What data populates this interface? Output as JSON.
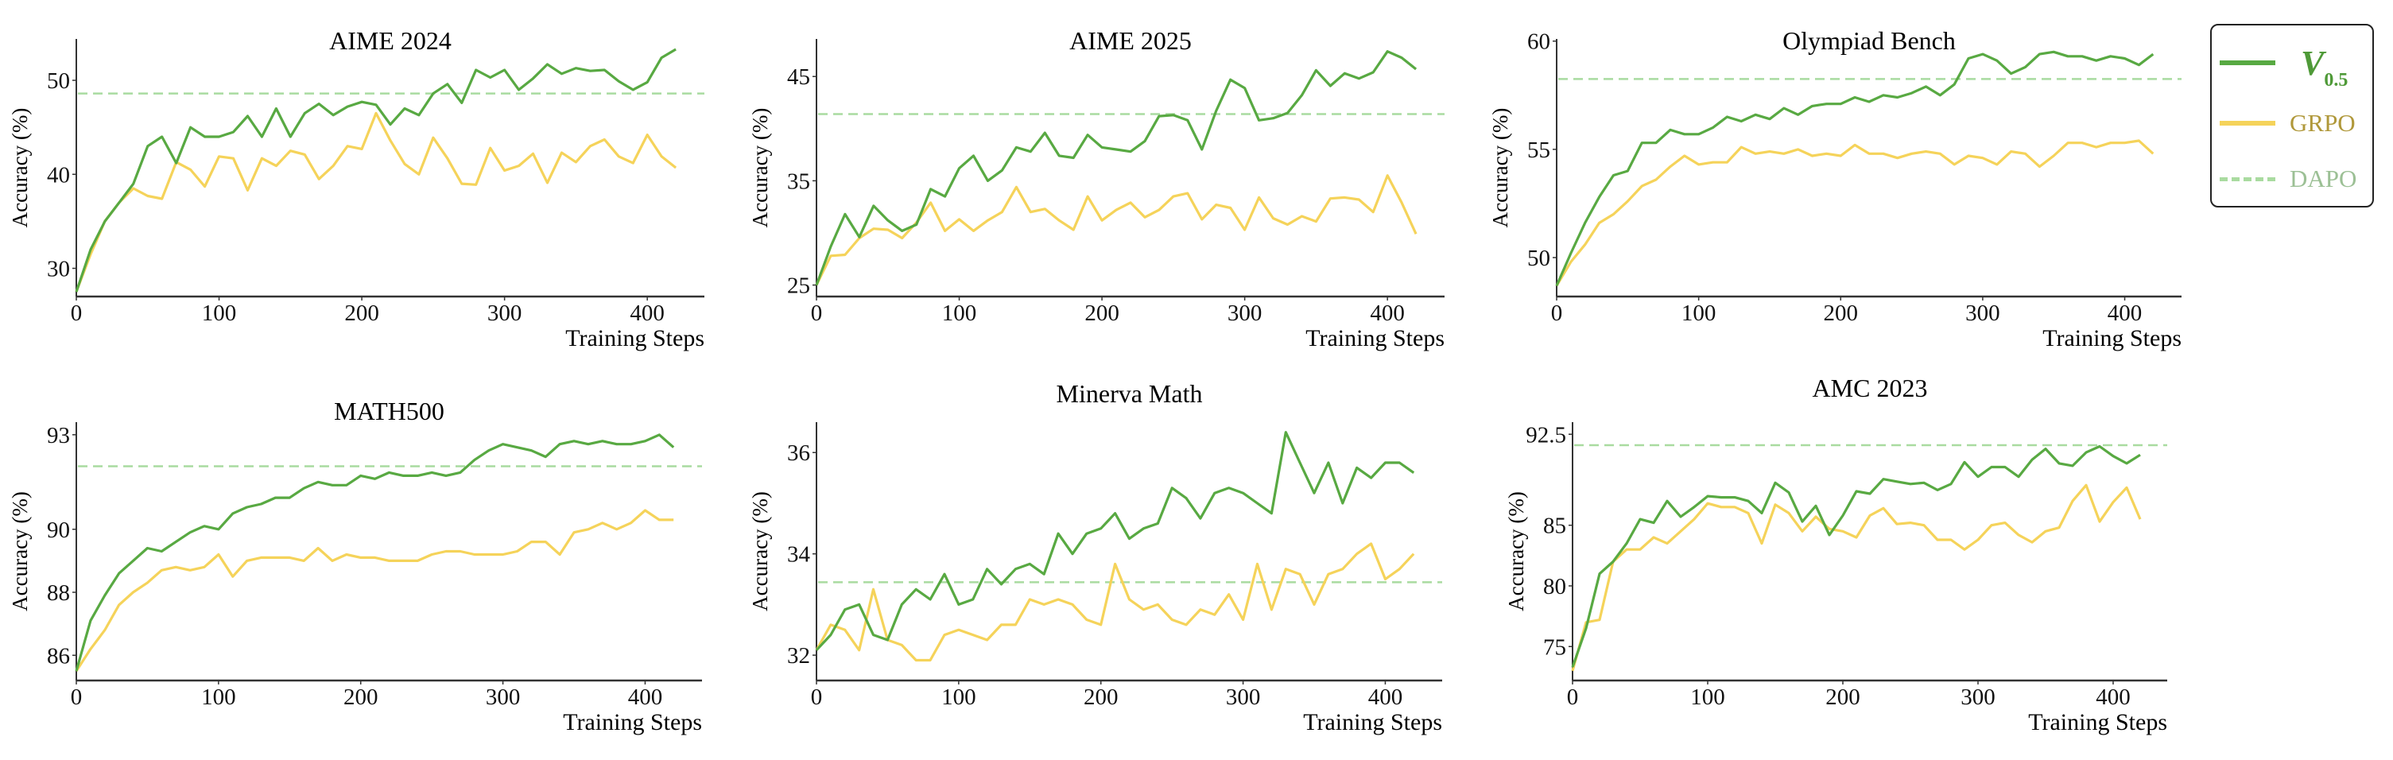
{
  "colors": {
    "v05": "#58a942",
    "grpo": "#f5d35a",
    "dapo": "#a9dba0",
    "v05_text": "#4f9a38",
    "grpo_text": "#b0983a",
    "dapo_text": "#9cc095"
  },
  "legend": {
    "placement": "right",
    "items": [
      {
        "key": "v05",
        "main": "V",
        "sub": "0.5",
        "style": "solid"
      },
      {
        "key": "grpo",
        "label": "GRPO",
        "style": "solid"
      },
      {
        "key": "dapo",
        "label": "DAPO",
        "style": "dashed"
      }
    ]
  },
  "chart_data": [
    {
      "type": "line",
      "title": "AIME 2024",
      "xlabel": "Training Steps",
      "ylabel": "Accuracy (%)",
      "xlim": [
        0,
        440
      ],
      "ylim": [
        27,
        54.4
      ],
      "xticks": [
        0,
        100,
        200,
        300,
        400
      ],
      "yticks": [
        30,
        40,
        50
      ],
      "grid": false,
      "dapo_baseline": 48.6,
      "x": [
        0,
        10,
        20,
        30,
        40,
        50,
        60,
        70,
        80,
        90,
        100,
        110,
        120,
        130,
        140,
        150,
        160,
        170,
        180,
        190,
        200,
        210,
        220,
        230,
        240,
        250,
        260,
        270,
        280,
        290,
        300,
        310,
        320,
        330,
        340,
        350,
        360,
        370,
        380,
        390,
        400,
        410,
        420
      ],
      "series": [
        {
          "name": "V0.5",
          "values": [
            27.5,
            32,
            35,
            37,
            39,
            43,
            44,
            41.2,
            45,
            44,
            44,
            44.5,
            46.2,
            44,
            47,
            44,
            46.5,
            47.5,
            46.3,
            47.2,
            47.7,
            47.4,
            45.3,
            47,
            46.3,
            48.6,
            49.6,
            47.6,
            51.1,
            50.3,
            51.1,
            49,
            50.2,
            51.7,
            50.7,
            51.3,
            51,
            51.1,
            49.9,
            49,
            49.8,
            52.4,
            53.3
          ]
        },
        {
          "name": "GRPO",
          "values": [
            27.5,
            31.5,
            35,
            37,
            38.5,
            37.7,
            37.4,
            41.3,
            40.5,
            38.7,
            41.9,
            41.7,
            38.3,
            41.7,
            40.9,
            42.5,
            42.1,
            39.5,
            40.9,
            43,
            42.7,
            46.5,
            43.6,
            41.1,
            40,
            43.9,
            41.7,
            39,
            38.9,
            42.8,
            40.4,
            40.9,
            42.2,
            39.1,
            42.3,
            41.3,
            43,
            43.7,
            41.9,
            41.2,
            44.2,
            41.9,
            40.7
          ]
        }
      ]
    },
    {
      "type": "line",
      "title": "AIME 2025",
      "xlabel": "Training Steps",
      "ylabel": "Accuracy (%)",
      "xlim": [
        0,
        440
      ],
      "ylim": [
        23.9,
        48.6
      ],
      "xticks": [
        0,
        100,
        200,
        300,
        400
      ],
      "yticks": [
        25,
        35,
        45
      ],
      "grid": false,
      "dapo_baseline": 41.4,
      "x": [
        0,
        10,
        20,
        30,
        40,
        50,
        60,
        70,
        80,
        90,
        100,
        110,
        120,
        130,
        140,
        150,
        160,
        170,
        180,
        190,
        200,
        210,
        220,
        230,
        240,
        250,
        260,
        270,
        280,
        290,
        300,
        310,
        320,
        330,
        340,
        350,
        360,
        370,
        380,
        390,
        400,
        410,
        420
      ],
      "series": [
        {
          "name": "V0.5",
          "values": [
            25,
            28.7,
            31.8,
            29.6,
            32.6,
            31.2,
            30.2,
            30.8,
            34.2,
            33.5,
            36.2,
            37.4,
            35,
            36,
            38.2,
            37.8,
            39.6,
            37.4,
            37.2,
            39.4,
            38.2,
            38,
            37.8,
            38.8,
            41.2,
            41.3,
            40.8,
            38,
            41.7,
            44.7,
            43.9,
            40.8,
            41,
            41.5,
            43.2,
            45.6,
            44.1,
            45.3,
            44.8,
            45.4,
            47.4,
            46.8,
            45.7
          ]
        },
        {
          "name": "GRPO",
          "values": [
            25,
            27.8,
            27.9,
            29.5,
            30.4,
            30.3,
            29.5,
            31,
            32.9,
            30.2,
            31.3,
            30.2,
            31.2,
            32,
            34.4,
            32,
            32.3,
            31.2,
            30.3,
            33.5,
            31.2,
            32.2,
            32.9,
            31.5,
            32.2,
            33.5,
            33.8,
            31.3,
            32.7,
            32.4,
            30.3,
            33.4,
            31.4,
            30.8,
            31.6,
            31.1,
            33.3,
            33.4,
            33.2,
            32,
            35.5,
            32.9,
            29.9
          ]
        }
      ]
    },
    {
      "type": "line",
      "title": "Olympiad Bench",
      "xlabel": "Training Steps",
      "ylabel": "Accuracy (%)",
      "xlim": [
        0,
        440
      ],
      "ylim": [
        48.2,
        60.1
      ],
      "xticks": [
        0,
        100,
        200,
        300,
        400
      ],
      "yticks": [
        50,
        55,
        60
      ],
      "grid": false,
      "dapo_baseline": 58.25,
      "x": [
        0,
        10,
        20,
        30,
        40,
        50,
        60,
        70,
        80,
        90,
        100,
        110,
        120,
        130,
        140,
        150,
        160,
        170,
        180,
        190,
        200,
        210,
        220,
        230,
        240,
        250,
        260,
        270,
        280,
        290,
        300,
        310,
        320,
        330,
        340,
        350,
        360,
        370,
        380,
        390,
        400,
        410,
        420
      ],
      "series": [
        {
          "name": "V0.5",
          "values": [
            48.7,
            50.2,
            51.6,
            52.8,
            53.8,
            54,
            55.3,
            55.3,
            55.9,
            55.7,
            55.7,
            56,
            56.5,
            56.3,
            56.6,
            56.4,
            56.9,
            56.6,
            57,
            57.1,
            57.1,
            57.4,
            57.2,
            57.5,
            57.4,
            57.6,
            57.9,
            57.5,
            58,
            59.2,
            59.4,
            59.1,
            58.5,
            58.8,
            59.4,
            59.5,
            59.3,
            59.3,
            59.1,
            59.3,
            59.2,
            58.9,
            59.4
          ]
        },
        {
          "name": "GRPO",
          "values": [
            48.7,
            49.8,
            50.6,
            51.6,
            52,
            52.6,
            53.3,
            53.6,
            54.2,
            54.7,
            54.3,
            54.4,
            54.4,
            55.1,
            54.8,
            54.9,
            54.8,
            55,
            54.7,
            54.8,
            54.7,
            55.2,
            54.8,
            54.8,
            54.6,
            54.8,
            54.9,
            54.8,
            54.3,
            54.7,
            54.6,
            54.3,
            54.9,
            54.8,
            54.2,
            54.7,
            55.3,
            55.3,
            55.1,
            55.3,
            55.3,
            55.4,
            54.8
          ]
        }
      ]
    },
    {
      "type": "line",
      "title": "MATH500",
      "xlabel": "Training Steps",
      "ylabel": "Accuracy (%)",
      "xlim": [
        0,
        440
      ],
      "ylim": [
        85.2,
        93.4
      ],
      "xticks": [
        0,
        100,
        200,
        300,
        400
      ],
      "yticks": [
        86,
        88,
        90,
        93
      ],
      "grid": false,
      "dapo_baseline": 92.0,
      "x": [
        0,
        10,
        20,
        30,
        40,
        50,
        60,
        70,
        80,
        90,
        100,
        110,
        120,
        130,
        140,
        150,
        160,
        170,
        180,
        190,
        200,
        210,
        220,
        230,
        240,
        250,
        260,
        270,
        280,
        290,
        300,
        310,
        320,
        330,
        340,
        350,
        360,
        370,
        380,
        390,
        400,
        410,
        420
      ],
      "series": [
        {
          "name": "V0.5",
          "values": [
            85.5,
            87.1,
            87.9,
            88.6,
            89,
            89.4,
            89.3,
            89.6,
            89.9,
            90.1,
            90,
            90.5,
            90.7,
            90.8,
            91,
            91,
            91.3,
            91.5,
            91.4,
            91.4,
            91.7,
            91.6,
            91.8,
            91.7,
            91.7,
            91.8,
            91.7,
            91.8,
            92.2,
            92.5,
            92.7,
            92.6,
            92.5,
            92.3,
            92.7,
            92.8,
            92.7,
            92.8,
            92.7,
            92.7,
            92.8,
            93,
            92.6
          ]
        },
        {
          "name": "GRPO",
          "values": [
            85.5,
            86.2,
            86.8,
            87.6,
            88,
            88.3,
            88.7,
            88.8,
            88.7,
            88.8,
            89.2,
            88.5,
            89,
            89.1,
            89.1,
            89.1,
            89,
            89.4,
            89,
            89.2,
            89.1,
            89.1,
            89,
            89,
            89,
            89.2,
            89.3,
            89.3,
            89.2,
            89.2,
            89.2,
            89.3,
            89.6,
            89.6,
            89.2,
            89.9,
            90,
            90.2,
            90,
            90.2,
            90.6,
            90.3,
            90.3
          ]
        }
      ]
    },
    {
      "type": "line",
      "title": "Minerva Math",
      "xlabel": "Training Steps",
      "ylabel": "Accuracy (%)",
      "xlim": [
        0,
        440
      ],
      "ylim": [
        31.5,
        36.6
      ],
      "xticks": [
        0,
        100,
        200,
        300,
        400
      ],
      "yticks": [
        32,
        34,
        36
      ],
      "grid": false,
      "dapo_baseline": 33.44,
      "x": [
        0,
        10,
        20,
        30,
        40,
        50,
        60,
        70,
        80,
        90,
        100,
        110,
        120,
        130,
        140,
        150,
        160,
        170,
        180,
        190,
        200,
        210,
        220,
        230,
        240,
        250,
        260,
        270,
        280,
        290,
        300,
        310,
        320,
        330,
        340,
        350,
        360,
        370,
        380,
        390,
        400,
        410,
        420
      ],
      "series": [
        {
          "name": "V0.5",
          "values": [
            32.1,
            32.4,
            32.9,
            33,
            32.4,
            32.3,
            33,
            33.3,
            33.1,
            33.6,
            33,
            33.1,
            33.7,
            33.4,
            33.7,
            33.8,
            33.6,
            34.4,
            34,
            34.4,
            34.5,
            34.8,
            34.3,
            34.5,
            34.6,
            35.3,
            35.1,
            34.7,
            35.2,
            35.3,
            35.2,
            35,
            34.8,
            36.4,
            35.8,
            35.2,
            35.8,
            35,
            35.7,
            35.5,
            35.8,
            35.8,
            35.6
          ]
        },
        {
          "name": "GRPO",
          "values": [
            32.1,
            32.6,
            32.5,
            32.1,
            33.3,
            32.3,
            32.2,
            31.9,
            31.9,
            32.4,
            32.5,
            32.4,
            32.3,
            32.6,
            32.6,
            33.1,
            33,
            33.1,
            33,
            32.7,
            32.6,
            33.8,
            33.1,
            32.9,
            33,
            32.7,
            32.6,
            32.9,
            32.8,
            33.2,
            32.7,
            33.8,
            32.9,
            33.7,
            33.6,
            33,
            33.6,
            33.7,
            34,
            34.2,
            33.5,
            33.7,
            34
          ]
        }
      ]
    },
    {
      "type": "line",
      "title": "AMC 2023",
      "xlabel": "Training Steps",
      "ylabel": "Accuracy (%)",
      "xlim": [
        0,
        440
      ],
      "ylim": [
        72.2,
        93.5
      ],
      "xticks": [
        0,
        100,
        200,
        300,
        400
      ],
      "yticks": [
        75,
        80,
        85,
        92.5
      ],
      "grid": false,
      "dapo_baseline": 91.6,
      "x": [
        0,
        10,
        20,
        30,
        40,
        50,
        60,
        70,
        80,
        90,
        100,
        110,
        120,
        130,
        140,
        150,
        160,
        170,
        180,
        190,
        200,
        210,
        220,
        230,
        240,
        250,
        260,
        270,
        280,
        290,
        300,
        310,
        320,
        330,
        340,
        350,
        360,
        370,
        380,
        390,
        400,
        410,
        420
      ],
      "series": [
        {
          "name": "V0.5",
          "values": [
            73.3,
            76.5,
            81,
            82,
            83.5,
            85.5,
            85.2,
            87,
            85.7,
            86.5,
            87.4,
            87.3,
            87.3,
            87,
            86,
            88.5,
            87.7,
            85.3,
            86.6,
            84.2,
            85.8,
            87.8,
            87.6,
            88.8,
            88.6,
            88.4,
            88.5,
            87.9,
            88.4,
            90.2,
            89,
            89.8,
            89.8,
            89,
            90.4,
            91.3,
            90.1,
            89.9,
            91,
            91.5,
            90.7,
            90.1,
            90.8
          ]
        },
        {
          "name": "GRPO",
          "values": [
            73,
            77,
            77.2,
            82,
            83,
            83,
            84,
            83.5,
            84.5,
            85.5,
            86.8,
            86.5,
            86.5,
            86,
            83.5,
            86.7,
            86,
            84.5,
            85.7,
            84.7,
            84.5,
            84,
            85.8,
            86.4,
            85.1,
            85.2,
            85,
            83.8,
            83.8,
            83,
            83.8,
            85,
            85.2,
            84.2,
            83.6,
            84.5,
            84.8,
            87,
            88.3,
            85.3,
            86.9,
            88.1,
            85.5
          ]
        }
      ]
    }
  ]
}
